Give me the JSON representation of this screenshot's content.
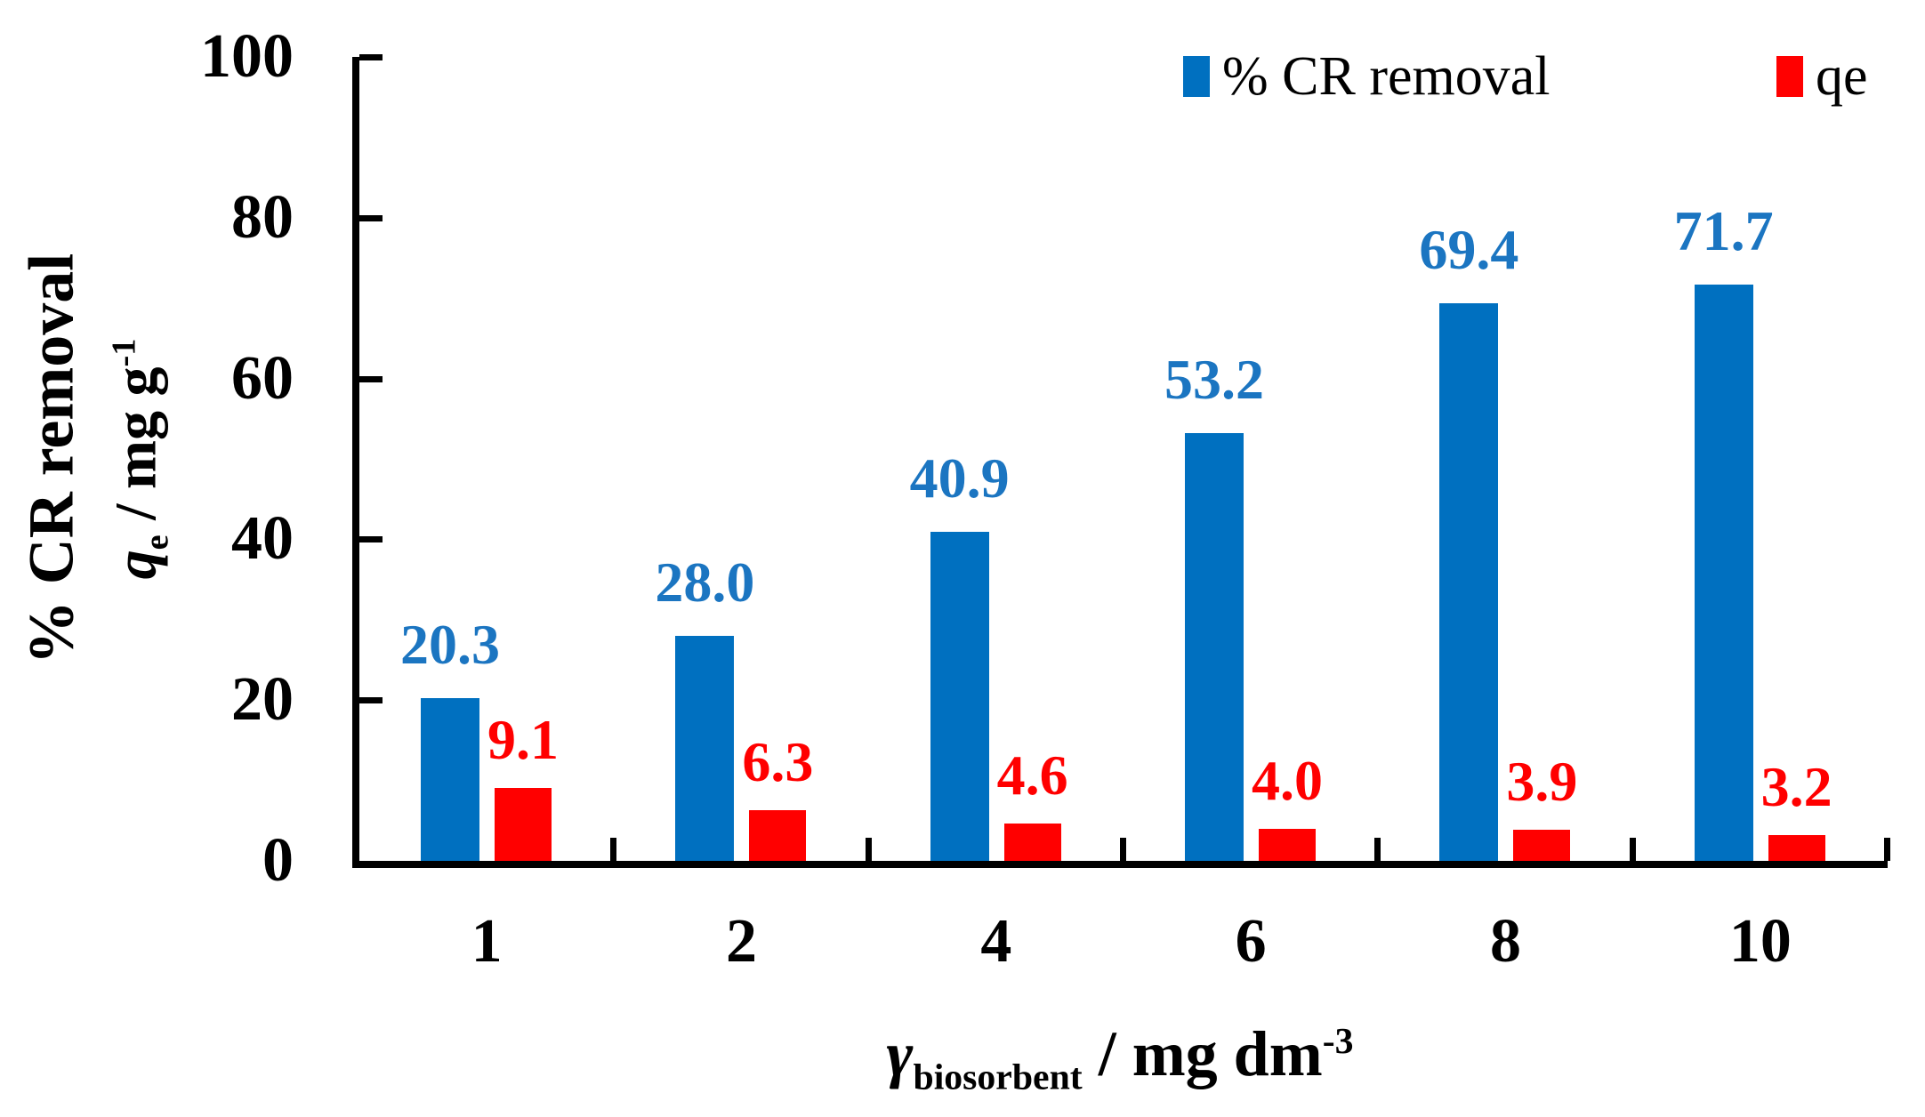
{
  "figure": {
    "background": "#ffffff",
    "axis_color": "#000000"
  },
  "legend": [
    {
      "label": "% CR removal",
      "color": "#0070C0"
    },
    {
      "label": "qe",
      "color": "#FF0000"
    }
  ],
  "axes": {
    "y_ticks": [
      "100",
      "80",
      "60",
      "40",
      "20",
      "0"
    ],
    "x_ticks": [
      "1",
      "2",
      "4",
      "6",
      "8",
      "10"
    ],
    "y_title": {
      "line1": "% CR removal",
      "line2_var": "q",
      "line2_sub": "e",
      "line2_rest": " / mg g",
      "line2_sup": "-1"
    },
    "x_title": {
      "var": "γ",
      "sub": "biosorbent",
      "rest": " / mg dm",
      "sup": "-3"
    }
  },
  "chart_data": {
    "type": "bar",
    "categories": [
      "1",
      "2",
      "4",
      "6",
      "8",
      "10"
    ],
    "series": [
      {
        "name": "% CR removal",
        "color": "#0070C0",
        "label_color": "#1B75C1",
        "values": [
          20.3,
          28.0,
          40.9,
          53.2,
          69.4,
          71.7
        ],
        "labels": [
          "20.3",
          "28.0",
          "40.9",
          "53.2",
          "69.4",
          "71.7"
        ]
      },
      {
        "name": "qe",
        "color": "#FF0000",
        "label_color": "#FF0000",
        "values": [
          9.1,
          6.3,
          4.6,
          4.0,
          3.9,
          3.2
        ],
        "labels": [
          "9.1",
          "6.3",
          "4.6",
          "4.0",
          "3.9",
          "3.2"
        ]
      }
    ],
    "title": "",
    "xlabel": "γbiosorbent / mg dm-3",
    "ylabel": "% CR removal ; qe / mg g-1",
    "ylim": [
      0,
      100
    ],
    "grid": false,
    "legend_position": "top-right",
    "data_labels": "outside-end"
  }
}
